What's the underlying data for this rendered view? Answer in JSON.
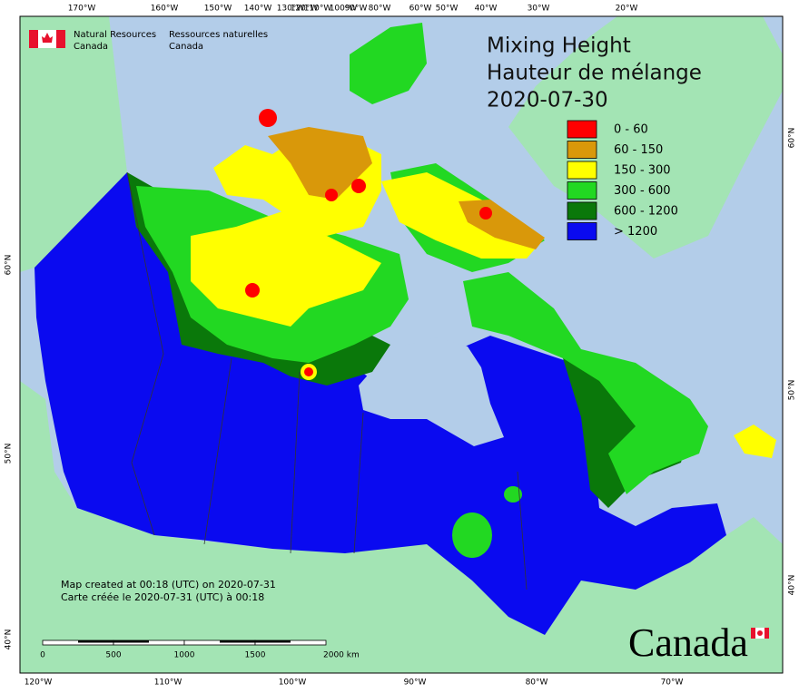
{
  "header": {
    "agency_en": [
      "Natural Resources",
      "Canada"
    ],
    "agency_fr": [
      "Ressources naturelles",
      "Canada"
    ]
  },
  "title": [
    "Mixing Height",
    "Hauteur de mélange",
    "2020-07-30"
  ],
  "legend": [
    {
      "label": "0 - 60",
      "color": "#ff0000"
    },
    {
      "label": "60 - 150",
      "color": "#d9980a"
    },
    {
      "label": "150 - 300",
      "color": "#ffff00"
    },
    {
      "label": "300 - 600",
      "color": "#22d822"
    },
    {
      "label": "600 - 1200",
      "color": "#0a780a"
    },
    {
      "label": "> 1200",
      "color": "#0a0af0"
    }
  ],
  "graticule": {
    "top": [
      "170°W",
      "160°W",
      "150°W",
      "140°W",
      "130°W",
      "120°W",
      "110°W",
      "100°W",
      "90°W",
      "80°W",
      "60°W",
      "50°W",
      "40°W",
      "30°W",
      "20°W"
    ],
    "bottom": [
      "120°W",
      "110°W",
      "100°W",
      "90°W",
      "80°W",
      "70°W"
    ],
    "left": [
      "60°N",
      "50°N",
      "40°N"
    ],
    "right": [
      "60°N",
      "50°N",
      "40°N"
    ]
  },
  "scale_bar": [
    "0",
    "500",
    "1000",
    "1500",
    "2000 km"
  ],
  "footer": [
    "Map created at 00:18 (UTC) on 2020-07-31",
    "Carte créée le 2020-07-31 (UTC) à 00:18"
  ],
  "wordmark": "Canada"
}
